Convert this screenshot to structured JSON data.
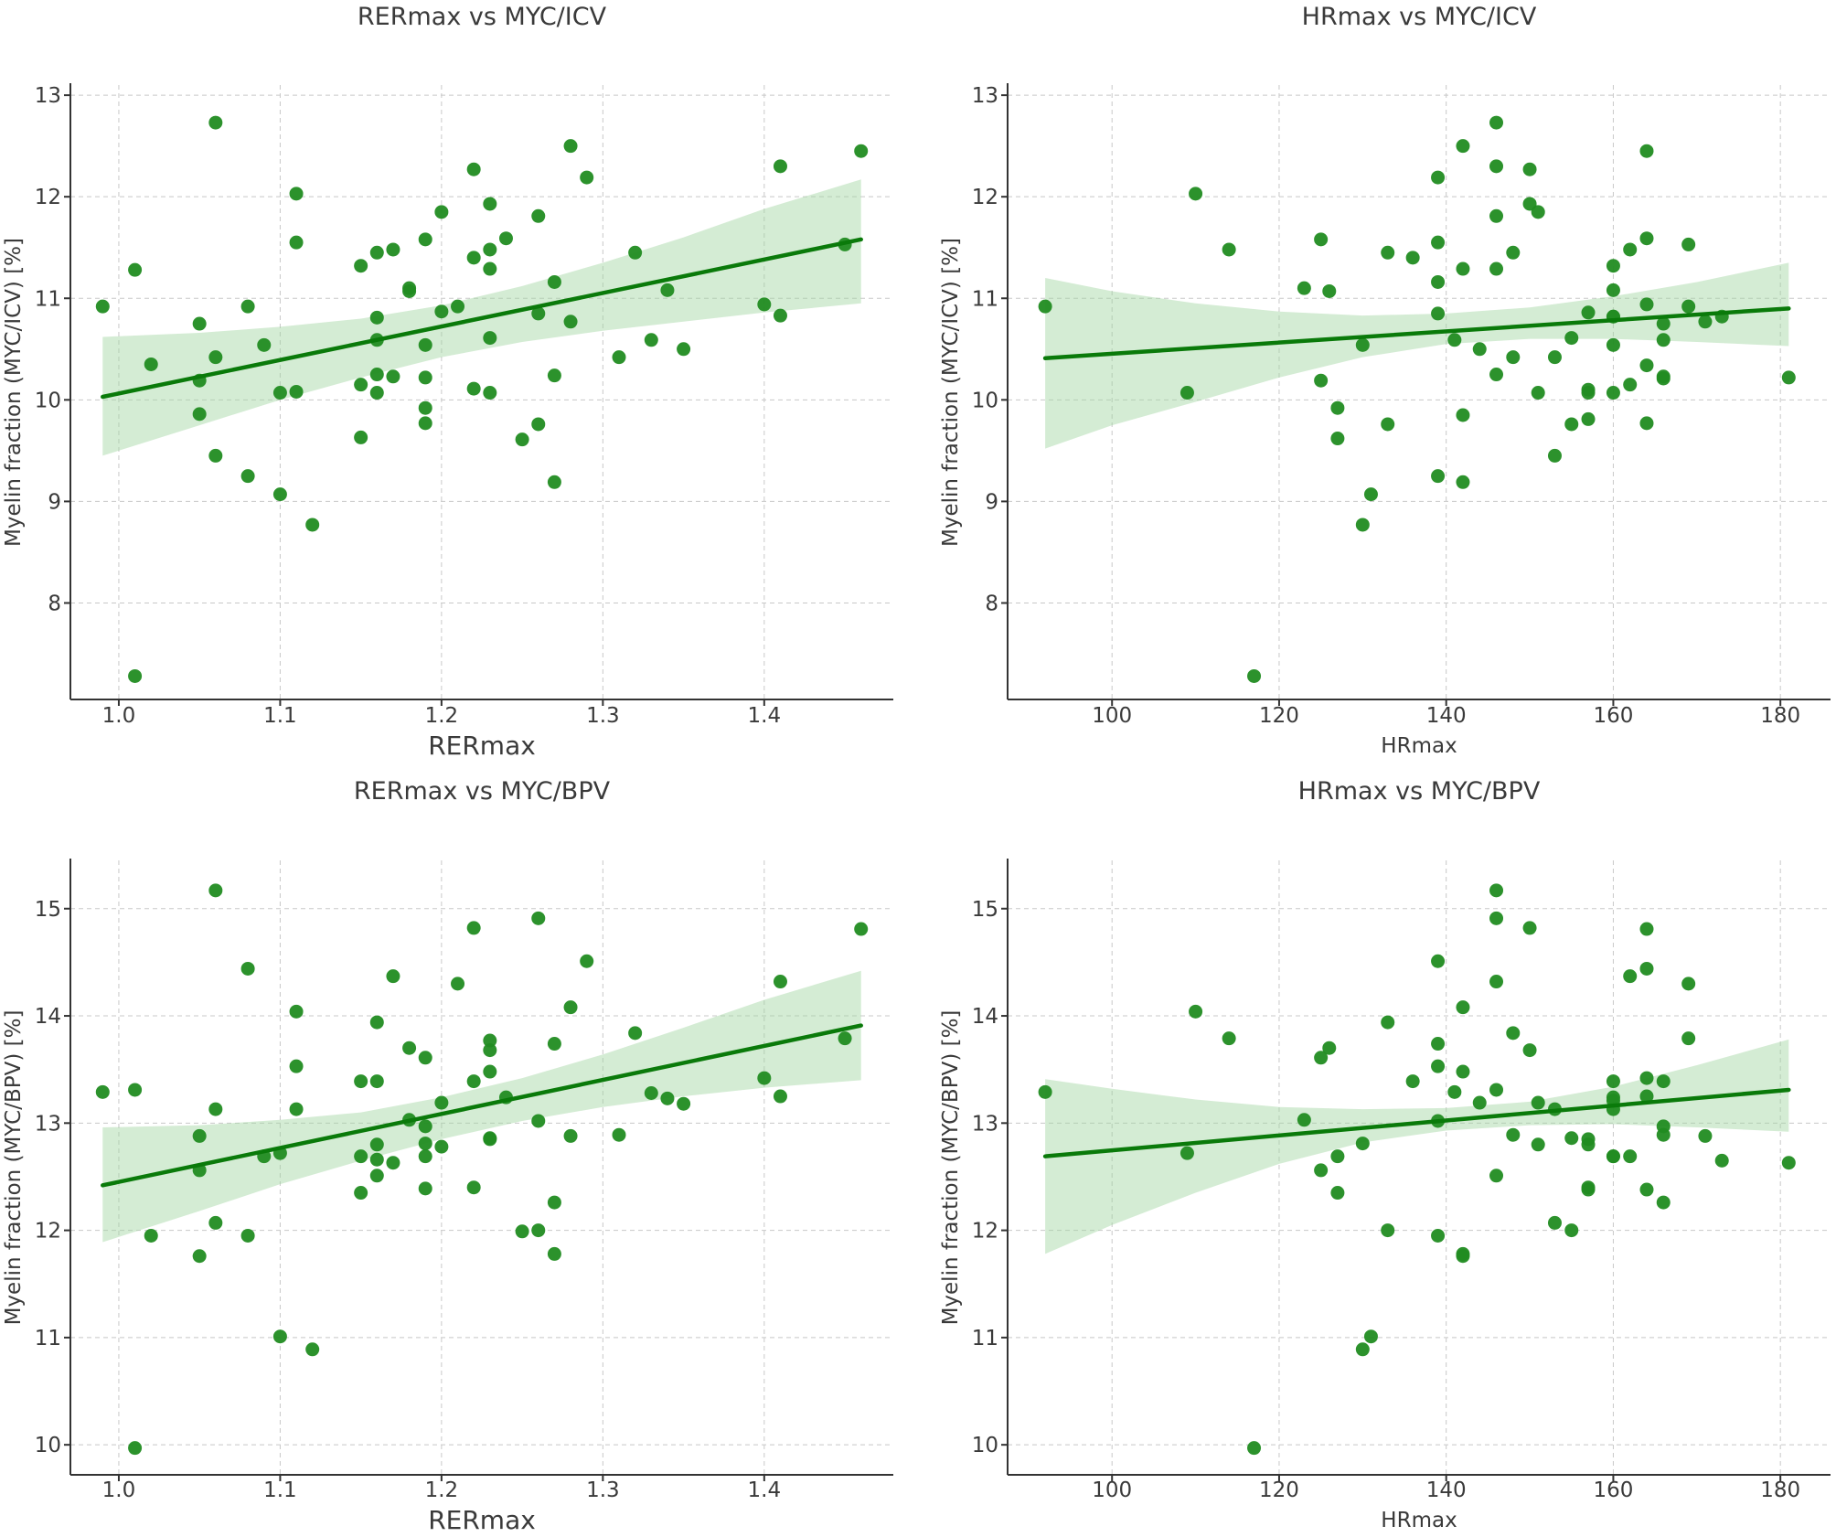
{
  "colors": {
    "points": "#218c21",
    "line": "#0a7a0a",
    "band": "#9fd49f"
  },
  "chart_data": [
    {
      "type": "scatter",
      "title": "RERmax vs MYC/ICV",
      "xlabel": "RERmax",
      "ylabel": "Myelin fraction (MYC/ICV) [%]",
      "xlim": [
        0.97,
        1.48
      ],
      "ylim": [
        7.05,
        13.1
      ],
      "xticks": [
        1.0,
        1.1,
        1.2,
        1.3,
        1.4
      ],
      "xtick_labels": [
        "1.0",
        "1.1",
        "1.2",
        "1.3",
        "1.4"
      ],
      "yticks": [
        8,
        9,
        10,
        11,
        12,
        13
      ],
      "ytick_labels": [
        "8",
        "9",
        "10",
        "11",
        "12",
        "13"
      ],
      "xlabel_size": "big",
      "grid": true,
      "x": [
        0.99,
        1.01,
        1.01,
        1.02,
        1.05,
        1.05,
        1.05,
        1.06,
        1.06,
        1.06,
        1.08,
        1.08,
        1.09,
        1.1,
        1.1,
        1.11,
        1.11,
        1.11,
        1.12,
        1.15,
        1.15,
        1.15,
        1.16,
        1.16,
        1.16,
        1.16,
        1.16,
        1.17,
        1.17,
        1.18,
        1.18,
        1.19,
        1.19,
        1.19,
        1.19,
        1.19,
        1.2,
        1.2,
        1.21,
        1.22,
        1.22,
        1.22,
        1.23,
        1.23,
        1.23,
        1.23,
        1.23,
        1.24,
        1.25,
        1.26,
        1.26,
        1.26,
        1.27,
        1.27,
        1.27,
        1.28,
        1.28,
        1.29,
        1.31,
        1.32,
        1.33,
        1.34,
        1.35,
        1.4,
        1.41,
        1.41,
        1.45,
        1.46
      ],
      "y": [
        10.92,
        11.28,
        7.28,
        10.35,
        10.75,
        10.19,
        9.86,
        12.73,
        10.42,
        9.45,
        10.92,
        9.25,
        10.54,
        10.07,
        9.07,
        12.03,
        11.55,
        10.08,
        8.77,
        11.32,
        10.15,
        9.63,
        11.45,
        10.81,
        10.59,
        10.25,
        10.07,
        11.48,
        10.23,
        11.1,
        11.07,
        11.58,
        10.54,
        10.22,
        9.92,
        9.77,
        11.85,
        10.87,
        10.92,
        12.27,
        11.4,
        10.11,
        11.93,
        11.48,
        11.29,
        10.61,
        10.07,
        11.59,
        9.61,
        11.81,
        10.85,
        9.76,
        11.16,
        10.24,
        9.19,
        12.5,
        10.77,
        12.19,
        10.42,
        11.45,
        10.59,
        11.08,
        10.5,
        10.94,
        12.3,
        10.83,
        11.53,
        12.45
      ],
      "fit": {
        "x": [
          0.99,
          1.46
        ],
        "y": [
          10.03,
          11.58
        ]
      },
      "ci": {
        "x": [
          0.99,
          1.05,
          1.1,
          1.15,
          1.2,
          1.25,
          1.3,
          1.35,
          1.4,
          1.46
        ],
        "lower": [
          9.45,
          9.75,
          10.0,
          10.22,
          10.42,
          10.57,
          10.68,
          10.77,
          10.86,
          10.95
        ],
        "upper": [
          10.62,
          10.66,
          10.72,
          10.8,
          10.93,
          11.12,
          11.35,
          11.6,
          11.88,
          12.17
        ]
      }
    },
    {
      "type": "scatter",
      "title": "HRmax vs MYC/ICV",
      "xlabel": "HRmax",
      "ylabel": "Myelin fraction (MYC/ICV) [%]",
      "xlim": [
        87.5,
        186
      ],
      "ylim": [
        7.05,
        13.1
      ],
      "xticks": [
        100,
        120,
        140,
        160,
        180
      ],
      "xtick_labels": [
        "100",
        "120",
        "140",
        "160",
        "180"
      ],
      "yticks": [
        8,
        9,
        10,
        11,
        12,
        13
      ],
      "ytick_labels": [
        "8",
        "9",
        "10",
        "11",
        "12",
        "13"
      ],
      "xlabel_size": "small",
      "grid": true,
      "x": [
        92,
        109,
        110,
        114,
        117,
        123,
        125,
        125,
        126,
        127,
        127,
        130,
        130,
        131,
        133,
        133,
        136,
        139,
        139,
        139,
        139,
        139,
        141,
        142,
        142,
        142,
        142,
        144,
        146,
        146,
        146,
        146,
        146,
        148,
        148,
        150,
        150,
        151,
        151,
        153,
        153,
        155,
        155,
        157,
        157,
        157,
        157,
        160,
        160,
        160,
        160,
        160,
        160,
        162,
        162,
        164,
        164,
        164,
        164,
        164,
        166,
        166,
        166,
        166,
        169,
        169,
        171,
        173,
        181
      ],
      "y": [
        10.92,
        10.07,
        12.03,
        11.48,
        7.28,
        11.1,
        11.58,
        10.19,
        11.07,
        9.92,
        9.62,
        10.54,
        8.77,
        9.07,
        11.45,
        9.76,
        11.4,
        12.19,
        11.55,
        11.16,
        10.85,
        9.25,
        10.59,
        12.5,
        11.29,
        9.85,
        9.19,
        10.5,
        12.73,
        12.3,
        11.81,
        11.29,
        10.25,
        11.45,
        10.42,
        12.27,
        11.93,
        11.85,
        10.07,
        10.42,
        9.45,
        10.61,
        9.76,
        10.86,
        10.1,
        10.07,
        9.81,
        11.32,
        11.08,
        10.82,
        10.54,
        10.07,
        10.82,
        11.48,
        10.15,
        12.45,
        11.59,
        10.94,
        10.34,
        9.77,
        10.75,
        10.59,
        10.23,
        10.21,
        11.53,
        10.92,
        10.77,
        10.82,
        10.22
      ],
      "fit": {
        "x": [
          92,
          181
        ],
        "y": [
          10.41,
          10.9
        ]
      },
      "ci": {
        "x": [
          92,
          100,
          110,
          120,
          130,
          140,
          150,
          160,
          170,
          181
        ],
        "lower": [
          9.52,
          9.75,
          9.98,
          10.22,
          10.42,
          10.55,
          10.6,
          10.6,
          10.57,
          10.53
        ],
        "upper": [
          11.2,
          11.07,
          10.95,
          10.87,
          10.83,
          10.85,
          10.91,
          11.02,
          11.16,
          11.35
        ]
      }
    },
    {
      "type": "scatter",
      "title": "RERmax vs MYC/BPV",
      "xlabel": "RERmax",
      "ylabel": "Myelin fraction (MYC/BPV) [%]",
      "xlim": [
        0.97,
        1.48
      ],
      "ylim": [
        9.72,
        15.45
      ],
      "xticks": [
        1.0,
        1.1,
        1.2,
        1.3,
        1.4
      ],
      "xtick_labels": [
        "1.0",
        "1.1",
        "1.2",
        "1.3",
        "1.4"
      ],
      "yticks": [
        10,
        11,
        12,
        13,
        14,
        15
      ],
      "ytick_labels": [
        "10",
        "11",
        "12",
        "13",
        "14",
        "15"
      ],
      "xlabel_size": "big",
      "grid": true,
      "x": [
        0.99,
        1.01,
        1.01,
        1.02,
        1.05,
        1.05,
        1.05,
        1.06,
        1.06,
        1.06,
        1.08,
        1.08,
        1.09,
        1.1,
        1.1,
        1.11,
        1.11,
        1.11,
        1.12,
        1.15,
        1.15,
        1.15,
        1.16,
        1.16,
        1.16,
        1.16,
        1.16,
        1.17,
        1.17,
        1.18,
        1.18,
        1.19,
        1.19,
        1.19,
        1.19,
        1.19,
        1.2,
        1.2,
        1.21,
        1.22,
        1.22,
        1.22,
        1.23,
        1.23,
        1.23,
        1.23,
        1.23,
        1.24,
        1.25,
        1.26,
        1.26,
        1.26,
        1.27,
        1.27,
        1.27,
        1.28,
        1.28,
        1.29,
        1.31,
        1.32,
        1.33,
        1.34,
        1.35,
        1.4,
        1.41,
        1.41,
        1.45,
        1.46
      ],
      "y": [
        13.29,
        13.31,
        9.97,
        11.95,
        12.88,
        12.56,
        11.76,
        15.17,
        13.13,
        12.07,
        14.44,
        11.95,
        12.69,
        12.72,
        11.01,
        14.04,
        13.53,
        13.13,
        10.89,
        13.39,
        12.69,
        12.35,
        13.94,
        13.39,
        12.8,
        12.66,
        12.51,
        14.37,
        12.63,
        13.7,
        13.03,
        13.61,
        12.97,
        12.81,
        12.69,
        12.39,
        13.19,
        12.78,
        14.3,
        14.82,
        13.39,
        12.4,
        13.77,
        13.68,
        13.48,
        12.86,
        12.85,
        13.24,
        11.99,
        14.91,
        13.02,
        12.0,
        13.74,
        12.26,
        11.78,
        14.08,
        12.88,
        14.51,
        12.89,
        13.84,
        13.28,
        13.23,
        13.18,
        13.42,
        14.32,
        13.25,
        13.79,
        14.81
      ],
      "fit": {
        "x": [
          0.99,
          1.46
        ],
        "y": [
          12.42,
          13.91
        ]
      },
      "ci": {
        "x": [
          0.99,
          1.05,
          1.1,
          1.15,
          1.2,
          1.25,
          1.3,
          1.35,
          1.4,
          1.46
        ],
        "lower": [
          11.89,
          12.18,
          12.43,
          12.65,
          12.85,
          13.02,
          13.15,
          13.25,
          13.33,
          13.4
        ],
        "upper": [
          12.96,
          12.98,
          13.03,
          13.1,
          13.24,
          13.42,
          13.64,
          13.89,
          14.15,
          14.42
        ]
      }
    },
    {
      "type": "scatter",
      "title": "HRmax vs MYC/BPV",
      "xlabel": "HRmax",
      "ylabel": "Myelin fraction (MYC/BPV) [%]",
      "xlim": [
        87.5,
        186
      ],
      "ylim": [
        9.72,
        15.45
      ],
      "xticks": [
        100,
        120,
        140,
        160,
        180
      ],
      "xtick_labels": [
        "100",
        "120",
        "140",
        "160",
        "180"
      ],
      "yticks": [
        10,
        11,
        12,
        13,
        14,
        15
      ],
      "ytick_labels": [
        "10",
        "11",
        "12",
        "13",
        "14",
        "15"
      ],
      "xlabel_size": "small",
      "grid": true,
      "x": [
        92,
        109,
        110,
        114,
        117,
        123,
        125,
        125,
        126,
        127,
        127,
        130,
        130,
        131,
        133,
        133,
        136,
        139,
        139,
        139,
        139,
        139,
        141,
        142,
        142,
        142,
        142,
        144,
        146,
        146,
        146,
        146,
        146,
        148,
        148,
        150,
        150,
        151,
        151,
        153,
        153,
        155,
        155,
        157,
        157,
        157,
        157,
        160,
        160,
        160,
        160,
        160,
        160,
        162,
        162,
        164,
        164,
        164,
        164,
        164,
        166,
        166,
        166,
        166,
        169,
        169,
        171,
        173,
        181
      ],
      "y": [
        13.29,
        12.72,
        14.04,
        13.79,
        9.97,
        13.03,
        13.61,
        12.56,
        13.7,
        12.69,
        12.35,
        12.81,
        10.89,
        11.01,
        13.94,
        12.0,
        13.39,
        14.51,
        13.53,
        13.74,
        13.02,
        11.95,
        13.29,
        14.08,
        13.48,
        11.78,
        11.76,
        13.19,
        15.17,
        14.91,
        14.32,
        13.31,
        12.51,
        13.84,
        12.89,
        14.82,
        13.68,
        13.19,
        12.8,
        13.13,
        12.07,
        12.86,
        12.0,
        12.85,
        12.8,
        12.4,
        12.38,
        13.39,
        13.24,
        13.21,
        13.13,
        12.69,
        12.69,
        14.37,
        12.69,
        14.81,
        14.44,
        13.42,
        13.25,
        12.38,
        13.39,
        12.97,
        12.89,
        12.26,
        14.3,
        13.79,
        12.88,
        12.65,
        12.63
      ],
      "fit": {
        "x": [
          92,
          181
        ],
        "y": [
          12.69,
          13.31
        ]
      },
      "ci": {
        "x": [
          92,
          100,
          110,
          120,
          130,
          140,
          150,
          160,
          170,
          181
        ],
        "lower": [
          11.78,
          12.05,
          12.35,
          12.62,
          12.82,
          12.93,
          12.98,
          12.99,
          12.96,
          12.92
        ],
        "upper": [
          13.41,
          13.32,
          13.22,
          13.15,
          13.13,
          13.14,
          13.2,
          13.34,
          13.54,
          13.78
        ]
      }
    }
  ]
}
